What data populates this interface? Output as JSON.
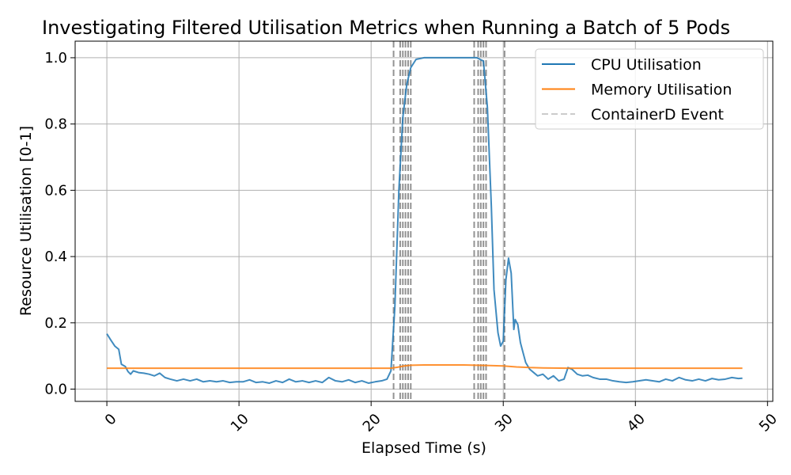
{
  "chart_data": {
    "type": "line",
    "title": "Investigating Filtered Utilisation Metrics when Running a Batch of 5 Pods",
    "xlabel": "Elapsed Time (s)",
    "ylabel": "Resource Utilisation [0-1]",
    "xlim": [
      -2.4,
      50.4
    ],
    "ylim": [
      -0.037,
      1.05
    ],
    "x_ticks": [
      0,
      10,
      20,
      30,
      40,
      50
    ],
    "y_ticks": [
      0.0,
      0.2,
      0.4,
      0.6,
      0.8,
      1.0
    ],
    "x_tick_labels": [
      "0",
      "10",
      "20",
      "30",
      "40",
      "50"
    ],
    "y_tick_labels": [
      "0.0",
      "0.2",
      "0.4",
      "0.6",
      "0.8",
      "1.0"
    ],
    "grid": true,
    "legend_position": "top-right",
    "series": [
      {
        "name": "CPU Utilisation",
        "color": "#1f77b4",
        "points": [
          [
            0.0,
            0.167
          ],
          [
            0.3,
            0.148
          ],
          [
            0.6,
            0.13
          ],
          [
            0.9,
            0.12
          ],
          [
            1.1,
            0.075
          ],
          [
            1.4,
            0.068
          ],
          [
            1.6,
            0.053
          ],
          [
            1.8,
            0.045
          ],
          [
            2.0,
            0.055
          ],
          [
            2.4,
            0.05
          ],
          [
            2.8,
            0.048
          ],
          [
            3.2,
            0.045
          ],
          [
            3.6,
            0.04
          ],
          [
            4.0,
            0.048
          ],
          [
            4.4,
            0.035
          ],
          [
            4.8,
            0.03
          ],
          [
            5.3,
            0.025
          ],
          [
            5.8,
            0.03
          ],
          [
            6.3,
            0.025
          ],
          [
            6.8,
            0.03
          ],
          [
            7.3,
            0.022
          ],
          [
            7.8,
            0.025
          ],
          [
            8.3,
            0.022
          ],
          [
            8.8,
            0.025
          ],
          [
            9.3,
            0.02
          ],
          [
            9.8,
            0.022
          ],
          [
            10.3,
            0.022
          ],
          [
            10.8,
            0.028
          ],
          [
            11.3,
            0.02
          ],
          [
            11.8,
            0.022
          ],
          [
            12.3,
            0.018
          ],
          [
            12.8,
            0.025
          ],
          [
            13.3,
            0.02
          ],
          [
            13.8,
            0.03
          ],
          [
            14.3,
            0.022
          ],
          [
            14.8,
            0.025
          ],
          [
            15.3,
            0.02
          ],
          [
            15.8,
            0.025
          ],
          [
            16.3,
            0.02
          ],
          [
            16.8,
            0.035
          ],
          [
            17.3,
            0.025
          ],
          [
            17.8,
            0.022
          ],
          [
            18.3,
            0.028
          ],
          [
            18.8,
            0.02
          ],
          [
            19.3,
            0.025
          ],
          [
            19.8,
            0.018
          ],
          [
            20.3,
            0.022
          ],
          [
            20.8,
            0.025
          ],
          [
            21.2,
            0.03
          ],
          [
            21.5,
            0.055
          ],
          [
            21.8,
            0.25
          ],
          [
            22.1,
            0.6
          ],
          [
            22.4,
            0.82
          ],
          [
            22.7,
            0.92
          ],
          [
            23.0,
            0.97
          ],
          [
            23.4,
            0.995
          ],
          [
            24.0,
            1.0
          ],
          [
            25.0,
            1.0
          ],
          [
            26.0,
            1.0
          ],
          [
            27.0,
            1.0
          ],
          [
            28.0,
            1.0
          ],
          [
            28.5,
            0.99
          ],
          [
            28.8,
            0.85
          ],
          [
            29.1,
            0.55
          ],
          [
            29.3,
            0.3
          ],
          [
            29.6,
            0.17
          ],
          [
            29.8,
            0.13
          ],
          [
            30.0,
            0.145
          ],
          [
            30.2,
            0.33
          ],
          [
            30.4,
            0.395
          ],
          [
            30.6,
            0.35
          ],
          [
            30.8,
            0.18
          ],
          [
            30.9,
            0.21
          ],
          [
            31.1,
            0.195
          ],
          [
            31.3,
            0.14
          ],
          [
            31.5,
            0.11
          ],
          [
            31.7,
            0.08
          ],
          [
            32.0,
            0.06
          ],
          [
            32.3,
            0.05
          ],
          [
            32.6,
            0.04
          ],
          [
            33.0,
            0.045
          ],
          [
            33.4,
            0.03
          ],
          [
            33.8,
            0.04
          ],
          [
            34.2,
            0.025
          ],
          [
            34.6,
            0.03
          ],
          [
            34.9,
            0.065
          ],
          [
            35.2,
            0.06
          ],
          [
            35.6,
            0.045
          ],
          [
            36.0,
            0.04
          ],
          [
            36.4,
            0.042
          ],
          [
            36.8,
            0.035
          ],
          [
            37.3,
            0.03
          ],
          [
            37.8,
            0.03
          ],
          [
            38.3,
            0.025
          ],
          [
            38.8,
            0.022
          ],
          [
            39.3,
            0.02
          ],
          [
            39.8,
            0.022
          ],
          [
            40.3,
            0.025
          ],
          [
            40.8,
            0.028
          ],
          [
            41.3,
            0.025
          ],
          [
            41.8,
            0.022
          ],
          [
            42.3,
            0.03
          ],
          [
            42.8,
            0.025
          ],
          [
            43.3,
            0.035
          ],
          [
            43.8,
            0.028
          ],
          [
            44.3,
            0.025
          ],
          [
            44.8,
            0.03
          ],
          [
            45.3,
            0.025
          ],
          [
            45.8,
            0.032
          ],
          [
            46.3,
            0.028
          ],
          [
            46.8,
            0.03
          ],
          [
            47.3,
            0.035
          ],
          [
            47.8,
            0.032
          ],
          [
            48.1,
            0.033
          ]
        ]
      },
      {
        "name": "Memory Utilisation",
        "color": "#ff7f0e",
        "points": [
          [
            0.0,
            0.063
          ],
          [
            5.0,
            0.063
          ],
          [
            10.0,
            0.063
          ],
          [
            15.0,
            0.063
          ],
          [
            20.0,
            0.063
          ],
          [
            21.5,
            0.063
          ],
          [
            22.0,
            0.066
          ],
          [
            22.5,
            0.07
          ],
          [
            23.0,
            0.072
          ],
          [
            24.0,
            0.073
          ],
          [
            25.0,
            0.073
          ],
          [
            26.0,
            0.073
          ],
          [
            27.0,
            0.073
          ],
          [
            28.0,
            0.072
          ],
          [
            29.0,
            0.071
          ],
          [
            30.0,
            0.07
          ],
          [
            31.0,
            0.067
          ],
          [
            32.0,
            0.065
          ],
          [
            33.0,
            0.064
          ],
          [
            35.0,
            0.063
          ],
          [
            40.0,
            0.063
          ],
          [
            45.0,
            0.063
          ],
          [
            48.1,
            0.063
          ]
        ]
      },
      {
        "name": "ContainerD Event",
        "color": "#808080",
        "event_times": [
          21.7,
          22.2,
          22.4,
          22.6,
          22.8,
          23.0,
          27.8,
          28.1,
          28.3,
          28.5,
          28.7,
          30.1
        ]
      }
    ]
  }
}
